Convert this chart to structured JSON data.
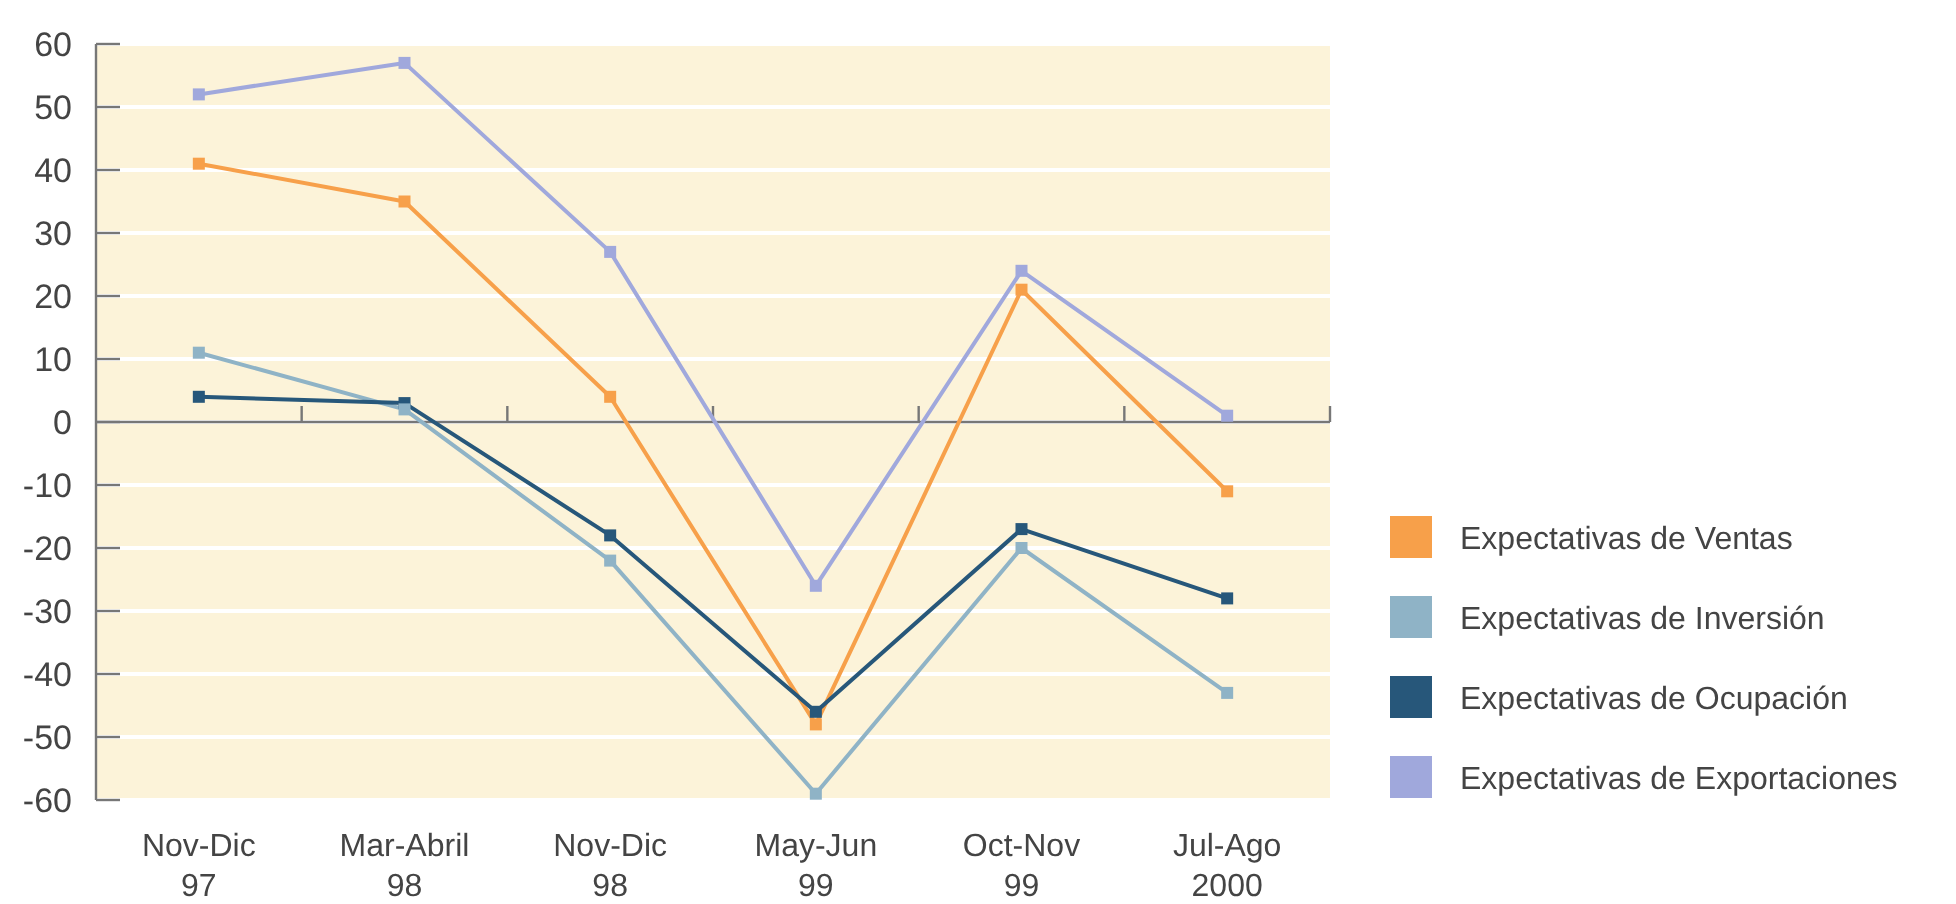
{
  "chart_data": {
    "type": "line",
    "categories": [
      "Nov-Dic\n97",
      "Mar-Abril\n98",
      "Nov-Dic\n98",
      "May-Jun\n99",
      "Oct-Nov\n99",
      "Jul-Ago\n2000"
    ],
    "series": [
      {
        "name": "Expectativas de Ventas",
        "color": "#f7a04a",
        "values": [
          41,
          35,
          4,
          -48,
          21,
          -11
        ]
      },
      {
        "name": "Expectativas de Inversión",
        "color": "#8fb3c6",
        "values": [
          11,
          2,
          -22,
          -59,
          -20,
          -43
        ]
      },
      {
        "name": "Expectativas de Ocupación",
        "color": "#27577a",
        "values": [
          4,
          3,
          -18,
          -46,
          -17,
          -28
        ]
      },
      {
        "name": "Expectativas de Exportaciones",
        "color": "#a0a8dc",
        "values": [
          52,
          57,
          27,
          -26,
          24,
          1
        ]
      }
    ],
    "ylim": [
      -60,
      60
    ],
    "yticks": [
      -60,
      -50,
      -40,
      -30,
      -20,
      -10,
      0,
      10,
      20,
      30,
      40,
      50,
      60
    ],
    "grid": "y",
    "legend": "right",
    "marker": "square",
    "line_style": "solid"
  }
}
